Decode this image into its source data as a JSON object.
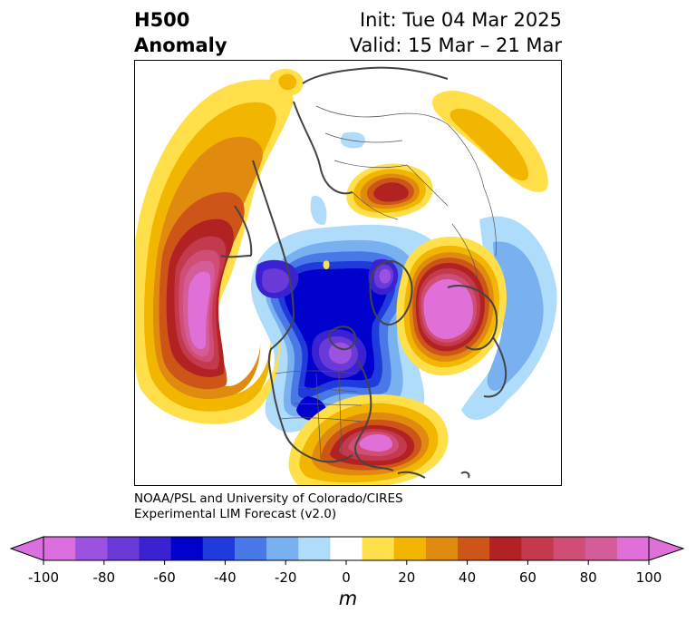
{
  "header": {
    "title_line1": "H500",
    "title_line2": "Anomaly",
    "init_label": "Init: Tue 04 Mar 2025",
    "valid_label": "Valid: 15 Mar – 21 Mar"
  },
  "footer": {
    "credit_line1": "NOAA/PSL and University of Colorado/CIRES",
    "credit_line2": "Experimental LIM Forecast (v2.0)"
  },
  "map": {
    "projection": "north-polar-stereographic",
    "field": "500 hPa geopotential height anomaly",
    "features": [
      {
        "name": "central-north-pacific-ridge",
        "sign": "positive",
        "peak": 100
      },
      {
        "name": "north-atlantic-ridge",
        "sign": "positive",
        "peak": 100
      },
      {
        "name": "southeast-us-ridge",
        "sign": "positive",
        "peak": 90
      },
      {
        "name": "siberian-ridge",
        "sign": "positive",
        "peak": 60
      },
      {
        "name": "western-europe-trough",
        "sign": "negative",
        "peak": -90
      },
      {
        "name": "greenland-trough",
        "sign": "negative",
        "peak": -90
      },
      {
        "name": "hudson-bay-trough",
        "sign": "negative",
        "peak": -90
      }
    ]
  },
  "colorbar": {
    "levels": [
      -100,
      -90,
      -80,
      -70,
      -60,
      -50,
      -40,
      -30,
      -20,
      -10,
      10,
      20,
      30,
      40,
      50,
      60,
      70,
      80,
      90,
      100
    ],
    "colors": [
      "#db6fdf",
      "#9b52e0",
      "#6a3ad9",
      "#3a22d2",
      "#0000cc",
      "#1f3bdb",
      "#4a78e6",
      "#78b0f0",
      "#aedcfa",
      "#ffffff",
      "#ffe04a",
      "#f2b600",
      "#e08b10",
      "#cc5517",
      "#b22222",
      "#c33a4f",
      "#d04d76",
      "#d45c98",
      "#e070d8"
    ],
    "ticks": [
      "-100",
      "-80",
      "-60",
      "-40",
      "-20",
      "0",
      "20",
      "40",
      "60",
      "80",
      "100"
    ],
    "unit": "m",
    "extend": "both"
  }
}
